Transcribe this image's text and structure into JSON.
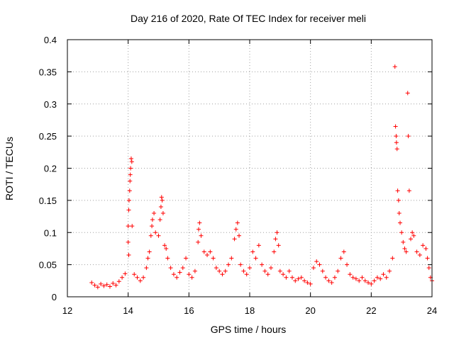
{
  "chart_data": {
    "type": "scatter",
    "title": "Day 216 of 2020, Rate Of TEC Index for receiver meli",
    "xlabel": "GPS time / hours",
    "ylabel": "ROTI / TECUs",
    "xlim": [
      12,
      24
    ],
    "ylim": [
      0,
      0.4
    ],
    "xticks": [
      12,
      14,
      16,
      18,
      20,
      22,
      24
    ],
    "xtick_labels": [
      "12",
      "14",
      "16",
      "18",
      "20",
      "22",
      "24"
    ],
    "yticks": [
      0,
      0.05,
      0.1,
      0.15,
      0.2,
      0.25,
      0.3,
      0.35,
      0.4
    ],
    "ytick_labels": [
      "0",
      "0.05",
      "0.1",
      "0.15",
      "0.2",
      "0.25",
      "0.3",
      "0.35",
      "0.4"
    ],
    "grid": true,
    "marker": "+",
    "color": "#ff0000",
    "series": [
      {
        "name": "ROTI",
        "points": [
          [
            12.8,
            0.022
          ],
          [
            12.9,
            0.018
          ],
          [
            13.0,
            0.015
          ],
          [
            13.1,
            0.02
          ],
          [
            13.2,
            0.017
          ],
          [
            13.3,
            0.019
          ],
          [
            13.4,
            0.016
          ],
          [
            13.5,
            0.021
          ],
          [
            13.6,
            0.018
          ],
          [
            13.7,
            0.024
          ],
          [
            13.8,
            0.03
          ],
          [
            13.9,
            0.036
          ],
          [
            14.0,
            0.11
          ],
          [
            14.02,
            0.135
          ],
          [
            14.03,
            0.15
          ],
          [
            14.05,
            0.165
          ],
          [
            14.06,
            0.18
          ],
          [
            14.07,
            0.19
          ],
          [
            14.08,
            0.2
          ],
          [
            14.1,
            0.215
          ],
          [
            14.12,
            0.21
          ],
          [
            14.13,
            0.11
          ],
          [
            14.0,
            0.085
          ],
          [
            14.02,
            0.065
          ],
          [
            14.2,
            0.035
          ],
          [
            14.3,
            0.03
          ],
          [
            14.4,
            0.025
          ],
          [
            14.5,
            0.03
          ],
          [
            14.6,
            0.045
          ],
          [
            14.65,
            0.06
          ],
          [
            14.7,
            0.07
          ],
          [
            14.75,
            0.095
          ],
          [
            14.78,
            0.11
          ],
          [
            14.8,
            0.12
          ],
          [
            14.85,
            0.13
          ],
          [
            14.9,
            0.1
          ],
          [
            15.0,
            0.095
          ],
          [
            15.05,
            0.12
          ],
          [
            15.08,
            0.14
          ],
          [
            15.1,
            0.155
          ],
          [
            15.12,
            0.15
          ],
          [
            15.15,
            0.13
          ],
          [
            15.2,
            0.08
          ],
          [
            15.25,
            0.075
          ],
          [
            15.3,
            0.06
          ],
          [
            15.4,
            0.045
          ],
          [
            15.5,
            0.035
          ],
          [
            15.6,
            0.03
          ],
          [
            15.7,
            0.038
          ],
          [
            15.8,
            0.045
          ],
          [
            15.9,
            0.06
          ],
          [
            16.0,
            0.035
          ],
          [
            16.1,
            0.03
          ],
          [
            16.2,
            0.04
          ],
          [
            16.3,
            0.085
          ],
          [
            16.32,
            0.105
          ],
          [
            16.35,
            0.115
          ],
          [
            16.4,
            0.095
          ],
          [
            16.5,
            0.07
          ],
          [
            16.6,
            0.065
          ],
          [
            16.7,
            0.07
          ],
          [
            16.8,
            0.06
          ],
          [
            16.9,
            0.045
          ],
          [
            17.0,
            0.04
          ],
          [
            17.1,
            0.035
          ],
          [
            17.2,
            0.04
          ],
          [
            17.3,
            0.05
          ],
          [
            17.4,
            0.06
          ],
          [
            17.5,
            0.09
          ],
          [
            17.55,
            0.105
          ],
          [
            17.6,
            0.115
          ],
          [
            17.65,
            0.095
          ],
          [
            17.7,
            0.05
          ],
          [
            17.8,
            0.04
          ],
          [
            17.9,
            0.035
          ],
          [
            18.0,
            0.045
          ],
          [
            18.1,
            0.07
          ],
          [
            18.2,
            0.06
          ],
          [
            18.3,
            0.08
          ],
          [
            18.4,
            0.05
          ],
          [
            18.5,
            0.04
          ],
          [
            18.6,
            0.035
          ],
          [
            18.7,
            0.045
          ],
          [
            18.8,
            0.07
          ],
          [
            18.85,
            0.09
          ],
          [
            18.9,
            0.1
          ],
          [
            18.95,
            0.08
          ],
          [
            19.0,
            0.04
          ],
          [
            19.1,
            0.035
          ],
          [
            19.2,
            0.03
          ],
          [
            19.3,
            0.04
          ],
          [
            19.4,
            0.03
          ],
          [
            19.5,
            0.025
          ],
          [
            19.6,
            0.028
          ],
          [
            19.7,
            0.03
          ],
          [
            19.8,
            0.025
          ],
          [
            19.9,
            0.022
          ],
          [
            20.0,
            0.02
          ],
          [
            20.1,
            0.045
          ],
          [
            20.2,
            0.055
          ],
          [
            20.3,
            0.05
          ],
          [
            20.4,
            0.04
          ],
          [
            20.5,
            0.03
          ],
          [
            20.6,
            0.025
          ],
          [
            20.7,
            0.022
          ],
          [
            20.8,
            0.03
          ],
          [
            20.9,
            0.04
          ],
          [
            21.0,
            0.06
          ],
          [
            21.1,
            0.07
          ],
          [
            21.2,
            0.05
          ],
          [
            21.3,
            0.035
          ],
          [
            21.4,
            0.03
          ],
          [
            21.5,
            0.028
          ],
          [
            21.6,
            0.025
          ],
          [
            21.7,
            0.03
          ],
          [
            21.8,
            0.025
          ],
          [
            21.9,
            0.022
          ],
          [
            22.0,
            0.02
          ],
          [
            22.1,
            0.025
          ],
          [
            22.2,
            0.03
          ],
          [
            22.3,
            0.028
          ],
          [
            22.4,
            0.035
          ],
          [
            22.5,
            0.03
          ],
          [
            22.6,
            0.04
          ],
          [
            22.7,
            0.06
          ],
          [
            22.78,
            0.358
          ],
          [
            22.8,
            0.265
          ],
          [
            22.82,
            0.25
          ],
          [
            22.83,
            0.24
          ],
          [
            22.85,
            0.23
          ],
          [
            22.87,
            0.165
          ],
          [
            22.9,
            0.15
          ],
          [
            22.92,
            0.13
          ],
          [
            22.95,
            0.115
          ],
          [
            23.0,
            0.1
          ],
          [
            23.05,
            0.085
          ],
          [
            23.1,
            0.075
          ],
          [
            23.15,
            0.07
          ],
          [
            23.2,
            0.317
          ],
          [
            23.22,
            0.25
          ],
          [
            23.25,
            0.165
          ],
          [
            23.3,
            0.09
          ],
          [
            23.35,
            0.1
          ],
          [
            23.4,
            0.095
          ],
          [
            23.5,
            0.07
          ],
          [
            23.6,
            0.065
          ],
          [
            23.7,
            0.08
          ],
          [
            23.8,
            0.075
          ],
          [
            23.85,
            0.06
          ],
          [
            23.9,
            0.045
          ],
          [
            23.95,
            0.03
          ],
          [
            24.0,
            0.025
          ]
        ]
      }
    ]
  }
}
